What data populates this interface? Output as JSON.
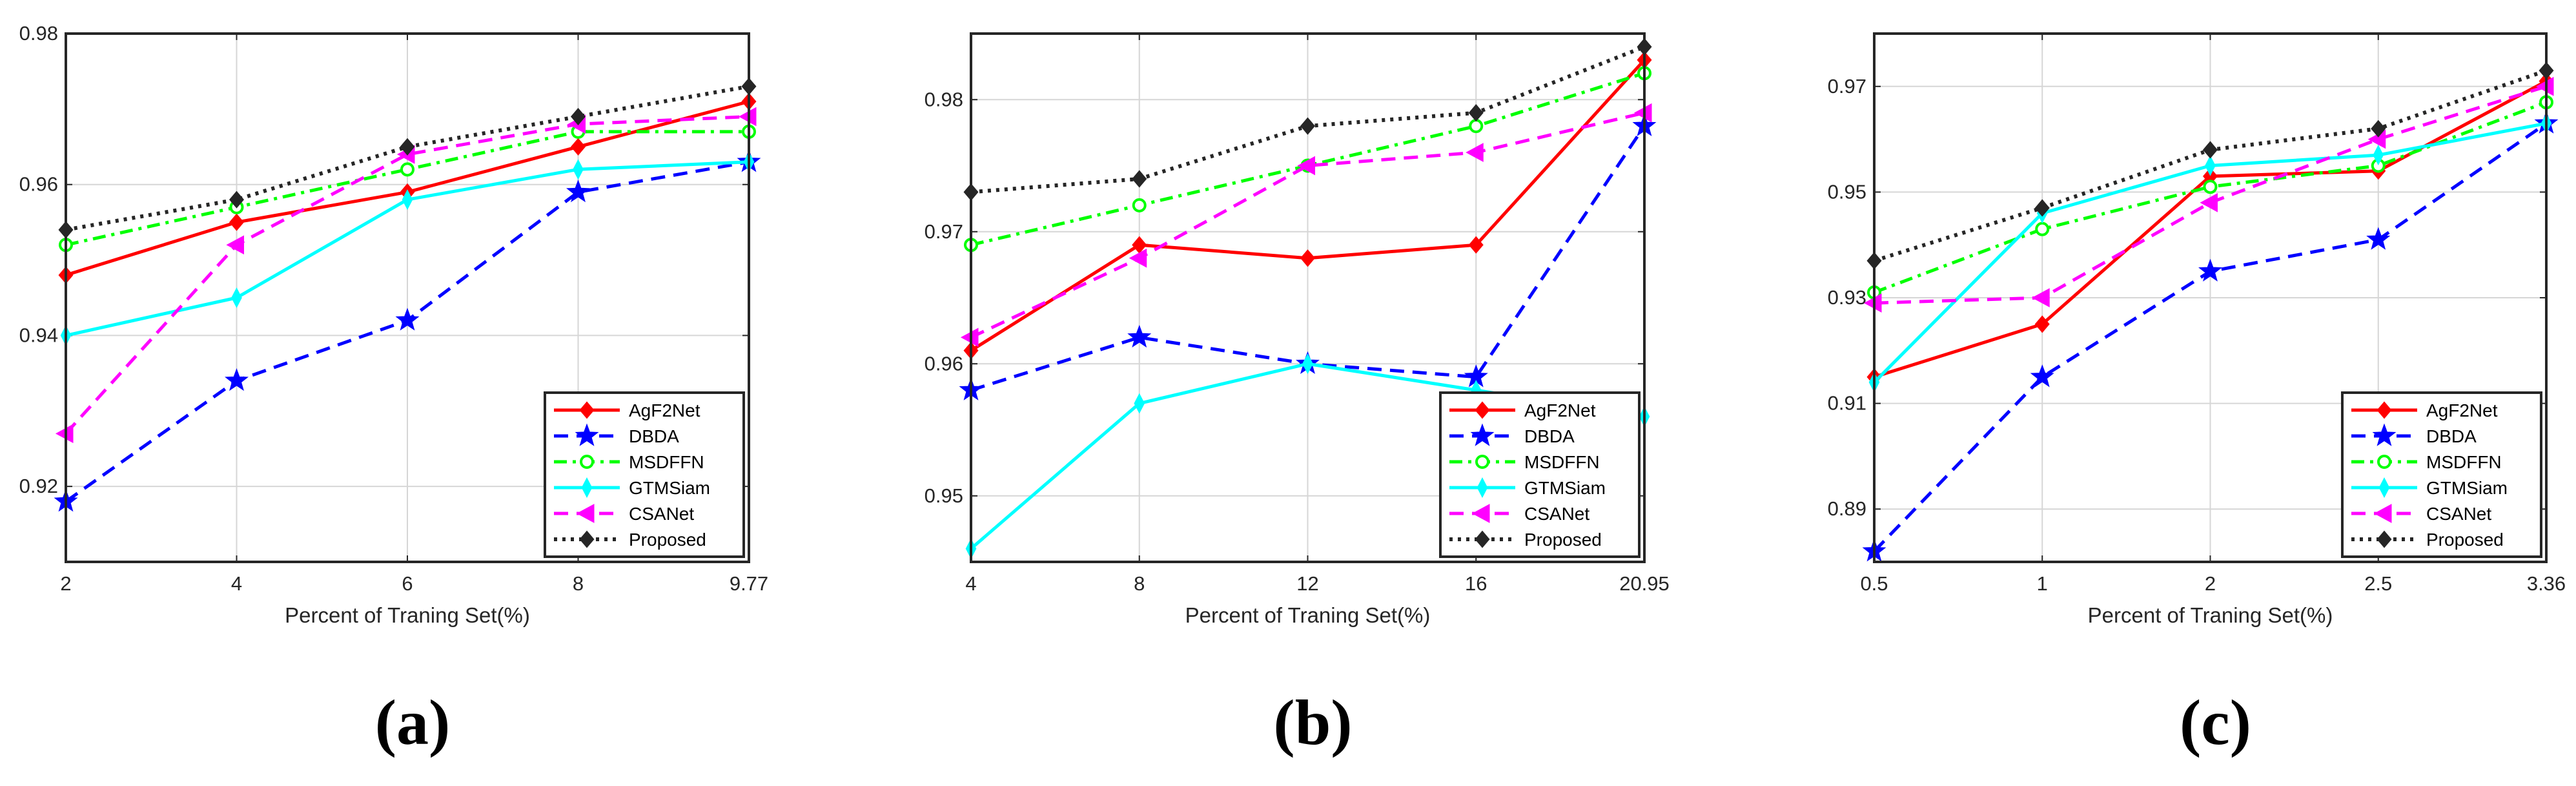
{
  "chart_data": [
    {
      "type": "line",
      "panel": "(a)",
      "xlabel": "Percent of Traning Set(%)",
      "ylabel": "",
      "categories": [
        "2",
        "4",
        "6",
        "8",
        "9.77"
      ],
      "ylim": [
        0.91,
        0.98
      ],
      "yticks": [
        0.92,
        0.94,
        0.96,
        0.98
      ],
      "ytick_labels": [
        "0.92",
        "0.94",
        "0.96",
        "0.98"
      ],
      "legend_position": "bottom-right",
      "grid": true,
      "series": [
        {
          "name": "AgF2Net",
          "color": "#ff0000",
          "dash": "solid",
          "marker": "diamond",
          "values": [
            0.948,
            0.955,
            0.959,
            0.965,
            0.971
          ]
        },
        {
          "name": "DBDA",
          "color": "#0000ff",
          "dash": "dashed",
          "marker": "star",
          "values": [
            0.918,
            0.934,
            0.942,
            0.959,
            0.963
          ]
        },
        {
          "name": "MSDFFN",
          "color": "#00ff00",
          "dash": "dashdot",
          "marker": "circle",
          "values": [
            0.952,
            0.957,
            0.962,
            0.967,
            0.967
          ]
        },
        {
          "name": "GTMSiam",
          "color": "#00ffff",
          "dash": "solid",
          "marker": "thin-diamond",
          "values": [
            0.94,
            0.945,
            0.958,
            0.962,
            0.963
          ]
        },
        {
          "name": "CSANet",
          "color": "#ff00ff",
          "dash": "dashed",
          "marker": "triangle-left",
          "values": [
            0.927,
            0.952,
            0.964,
            0.968,
            0.969
          ]
        },
        {
          "name": "Proposed",
          "color": "#262626",
          "dash": "dotted",
          "marker": "diamond",
          "values": [
            0.954,
            0.958,
            0.965,
            0.969,
            0.973
          ]
        }
      ]
    },
    {
      "type": "line",
      "panel": "(b)",
      "xlabel": "Percent of Traning Set(%)",
      "ylabel": "",
      "categories": [
        "4",
        "8",
        "12",
        "16",
        "20.95"
      ],
      "ylim": [
        0.945,
        0.985
      ],
      "yticks": [
        0.95,
        0.96,
        0.97,
        0.98
      ],
      "ytick_labels": [
        "0.95",
        "0.96",
        "0.97",
        "0.98"
      ],
      "legend_position": "bottom-right",
      "grid": true,
      "series": [
        {
          "name": "AgF2Net",
          "color": "#ff0000",
          "dash": "solid",
          "marker": "diamond",
          "values": [
            0.961,
            0.969,
            0.968,
            0.969,
            0.983
          ]
        },
        {
          "name": "DBDA",
          "color": "#0000ff",
          "dash": "dashed",
          "marker": "star",
          "values": [
            0.958,
            0.962,
            0.96,
            0.959,
            0.978
          ]
        },
        {
          "name": "MSDFFN",
          "color": "#00ff00",
          "dash": "dashdot",
          "marker": "circle",
          "values": [
            0.969,
            0.972,
            0.975,
            0.978,
            0.982
          ]
        },
        {
          "name": "GTMSiam",
          "color": "#00ffff",
          "dash": "solid",
          "marker": "thin-diamond",
          "values": [
            0.946,
            0.957,
            0.96,
            0.958,
            0.956
          ]
        },
        {
          "name": "CSANet",
          "color": "#ff00ff",
          "dash": "dashed",
          "marker": "triangle-left",
          "values": [
            0.962,
            0.968,
            0.975,
            0.976,
            0.979
          ]
        },
        {
          "name": "Proposed",
          "color": "#262626",
          "dash": "dotted",
          "marker": "diamond",
          "values": [
            0.973,
            0.974,
            0.978,
            0.979,
            0.984
          ]
        }
      ]
    },
    {
      "type": "line",
      "panel": "(c)",
      "xlabel": "Percent of Traning Set(%)",
      "ylabel": "",
      "categories": [
        "0.5",
        "1",
        "2",
        "2.5",
        "3.36"
      ],
      "ylim": [
        0.88,
        0.98
      ],
      "yticks": [
        0.89,
        0.91,
        0.93,
        0.95,
        0.97
      ],
      "ytick_labels": [
        "0.89",
        "0.91",
        "0.93",
        "0.95",
        "0.97"
      ],
      "legend_position": "bottom-right",
      "grid": true,
      "series": [
        {
          "name": "AgF2Net",
          "color": "#ff0000",
          "dash": "solid",
          "marker": "diamond",
          "values": [
            0.915,
            0.925,
            0.953,
            0.954,
            0.971
          ]
        },
        {
          "name": "DBDA",
          "color": "#0000ff",
          "dash": "dashed",
          "marker": "star",
          "values": [
            0.882,
            0.915,
            0.935,
            0.941,
            0.963
          ]
        },
        {
          "name": "MSDFFN",
          "color": "#00ff00",
          "dash": "dashdot",
          "marker": "circle",
          "values": [
            0.931,
            0.943,
            0.951,
            0.955,
            0.967
          ]
        },
        {
          "name": "GTMSiam",
          "color": "#00ffff",
          "dash": "solid",
          "marker": "thin-diamond",
          "values": [
            0.914,
            0.946,
            0.955,
            0.957,
            0.963
          ]
        },
        {
          "name": "CSANet",
          "color": "#ff00ff",
          "dash": "dashed",
          "marker": "triangle-left",
          "values": [
            0.929,
            0.93,
            0.948,
            0.96,
            0.97
          ]
        },
        {
          "name": "Proposed",
          "color": "#262626",
          "dash": "dotted",
          "marker": "diamond",
          "values": [
            0.937,
            0.947,
            0.958,
            0.962,
            0.973
          ]
        }
      ]
    }
  ]
}
